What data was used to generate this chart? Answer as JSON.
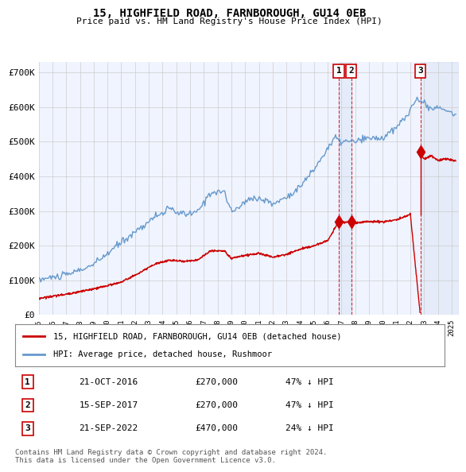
{
  "title": "15, HIGHFIELD ROAD, FARNBOROUGH, GU14 0EB",
  "subtitle": "Price paid vs. HM Land Registry's House Price Index (HPI)",
  "ylabel": "",
  "xlim_start": 1995.0,
  "xlim_end": 2025.5,
  "ylim": [
    0,
    730000
  ],
  "yticks": [
    0,
    100000,
    200000,
    300000,
    400000,
    500000,
    600000,
    700000
  ],
  "ytick_labels": [
    "£0",
    "£100K",
    "£200K",
    "£300K",
    "£400K",
    "£500K",
    "£600K",
    "£700K"
  ],
  "sale_dates": [
    "2016-10-21",
    "2017-09-15",
    "2022-09-21"
  ],
  "sale_prices": [
    270000,
    270000,
    470000
  ],
  "sale_labels": [
    "1",
    "2",
    "3"
  ],
  "sale_date_floats": [
    2016.806,
    2017.706,
    2022.722
  ],
  "red_line_color": "#cc0000",
  "blue_line_color": "#6699cc",
  "highlight_bg_color": "#ddeeff",
  "vline_color": "#cc0000",
  "grid_color": "#cccccc",
  "legend_entries": [
    "15, HIGHFIELD ROAD, FARNBOROUGH, GU14 0EB (detached house)",
    "HPI: Average price, detached house, Rushmoor"
  ],
  "table_rows": [
    [
      "1",
      "21-OCT-2016",
      "£270,000",
      "47% ↓ HPI"
    ],
    [
      "2",
      "15-SEP-2017",
      "£270,000",
      "47% ↓ HPI"
    ],
    [
      "3",
      "21-SEP-2022",
      "£470,000",
      "24% ↓ HPI"
    ]
  ],
  "footnote": "Contains HM Land Registry data © Crown copyright and database right 2024.\nThis data is licensed under the Open Government Licence v3.0.",
  "background_color": "#ffffff",
  "plot_bg_color": "#f8f8ff"
}
